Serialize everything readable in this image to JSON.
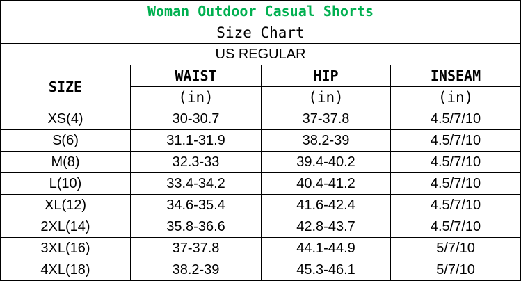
{
  "title": "Woman Outdoor Casual Shorts",
  "subtitle": "Size Chart",
  "region": "US REGULAR",
  "colors": {
    "title": "#00b050",
    "border": "#000000"
  },
  "headers": {
    "size": "SIZE",
    "waist": "WAIST",
    "hip": "HIP",
    "inseam": "INSEAM",
    "unit": "(in)"
  },
  "rows": [
    {
      "size": "XS(4)",
      "waist": "30-30.7",
      "hip": "37-37.8",
      "inseam": "4.5/7/10"
    },
    {
      "size": "S(6)",
      "waist": "31.1-31.9",
      "hip": "38.2-39",
      "inseam": "4.5/7/10"
    },
    {
      "size": "M(8)",
      "waist": "32.3-33",
      "hip": "39.4-40.2",
      "inseam": "4.5/7/10"
    },
    {
      "size": "L(10)",
      "waist": "33.4-34.2",
      "hip": "40.4-41.2",
      "inseam": "4.5/7/10"
    },
    {
      "size": "XL(12)",
      "waist": "34.6-35.4",
      "hip": "41.6-42.4",
      "inseam": "4.5/7/10"
    },
    {
      "size": "2XL(14)",
      "waist": "35.8-36.6",
      "hip": "42.8-43.7",
      "inseam": "4.5/7/10"
    },
    {
      "size": "3XL(16)",
      "waist": "37-37.8",
      "hip": "44.1-44.9",
      "inseam": "5/7/10"
    },
    {
      "size": "4XL(18)",
      "waist": "38.2-39",
      "hip": "45.3-46.1",
      "inseam": "5/7/10"
    }
  ]
}
